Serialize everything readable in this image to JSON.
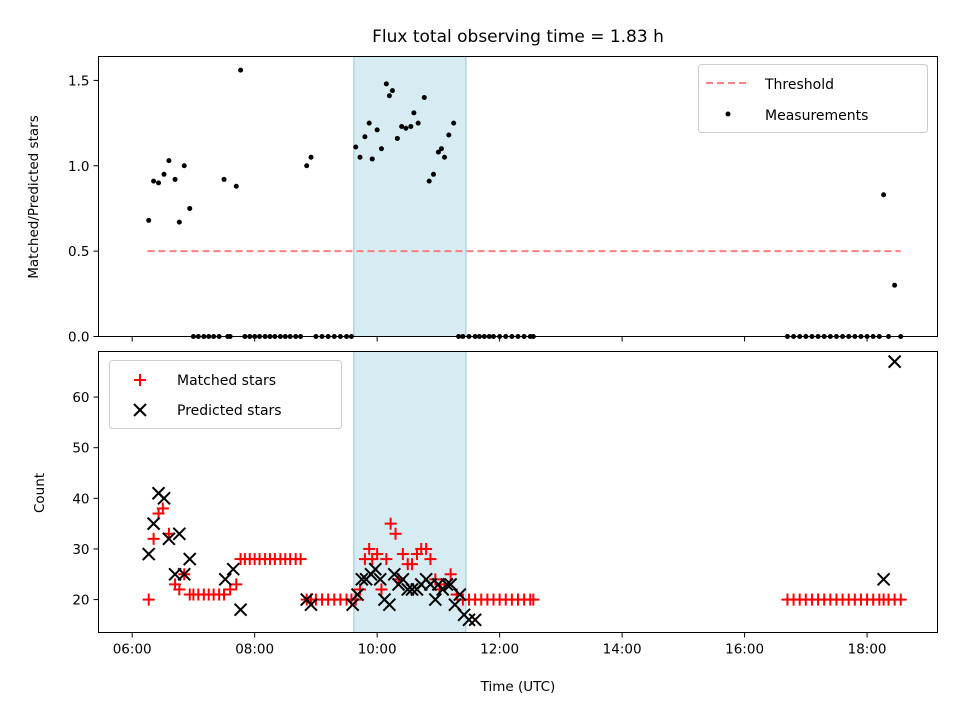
{
  "chart_data": [
    {
      "type": "scatter",
      "title": "Flux total observing time = 1.83 h",
      "xlabel": "",
      "ylabel": "Matched/Predicted stars",
      "xlim": [
        5.45,
        19.15
      ],
      "ylim": [
        0,
        1.64
      ],
      "yticks": [
        0.0,
        0.5,
        1.0,
        1.5
      ],
      "ytick_labels": [
        "0.0",
        "0.5",
        "1.0",
        "1.5"
      ],
      "xticks": [
        6,
        8,
        10,
        12,
        14,
        16,
        18
      ],
      "highlight_span": [
        9.62,
        11.45
      ],
      "legend": {
        "placement": "top-right",
        "entries": [
          "Threshold",
          "Measurements"
        ]
      },
      "threshold": {
        "name": "Threshold",
        "value": 0.5,
        "x_range": [
          6.25,
          18.55
        ],
        "color": "#ff8080"
      },
      "series": [
        {
          "name": "Measurements",
          "color": "#000000",
          "x": [
            6.27,
            6.35,
            6.43,
            6.52,
            6.6,
            6.7,
            6.77,
            6.85,
            6.94,
            7.0,
            7.08,
            7.17,
            7.25,
            7.33,
            7.42,
            7.5,
            7.56,
            7.6,
            7.7,
            7.77,
            7.84,
            7.92,
            8.0,
            8.08,
            8.17,
            8.25,
            8.33,
            8.42,
            8.5,
            8.58,
            8.67,
            8.75,
            8.85,
            8.92,
            9.0,
            9.1,
            9.2,
            9.3,
            9.4,
            9.5,
            9.58,
            9.65,
            9.72,
            9.8,
            9.87,
            9.92,
            10.0,
            10.07,
            10.15,
            10.2,
            10.25,
            10.33,
            10.4,
            10.47,
            10.55,
            10.6,
            10.67,
            10.77,
            10.85,
            10.92,
            11.0,
            11.05,
            11.1,
            11.17,
            11.25,
            11.33,
            11.4,
            11.5,
            11.6,
            11.67,
            11.75,
            11.83,
            11.9,
            12.0,
            12.1,
            12.2,
            12.3,
            12.4,
            12.5,
            12.55,
            16.7,
            16.8,
            16.9,
            17.0,
            17.1,
            17.2,
            17.3,
            17.4,
            17.5,
            17.6,
            17.7,
            17.8,
            17.9,
            18.0,
            18.1,
            18.2,
            18.27,
            18.35,
            18.45,
            18.55
          ],
          "y": [
            0.68,
            0.91,
            0.9,
            0.95,
            1.03,
            0.92,
            0.67,
            1.0,
            0.75,
            0.0,
            0.0,
            0.0,
            0.0,
            0.0,
            0.0,
            0.92,
            0.0,
            0.0,
            0.88,
            1.56,
            0.0,
            0.0,
            0.0,
            0.0,
            0.0,
            0.0,
            0.0,
            0.0,
            0.0,
            0.0,
            0.0,
            0.0,
            1.0,
            1.05,
            0.0,
            0.0,
            0.0,
            0.0,
            0.0,
            0.0,
            0.0,
            1.11,
            1.05,
            1.17,
            1.25,
            1.04,
            1.21,
            1.1,
            1.48,
            1.41,
            1.44,
            1.16,
            1.23,
            1.22,
            1.23,
            1.31,
            1.25,
            1.4,
            0.91,
            0.95,
            1.08,
            1.1,
            1.05,
            1.18,
            1.25,
            0.0,
            0.0,
            0.0,
            0.0,
            0.0,
            0.0,
            0.0,
            0.0,
            0.0,
            0.0,
            0.0,
            0.0,
            0.0,
            0.0,
            0.0,
            0.0,
            0.0,
            0.0,
            0.0,
            0.0,
            0.0,
            0.0,
            0.0,
            0.0,
            0.0,
            0.0,
            0.0,
            0.0,
            0.0,
            0.0,
            0.0,
            0.83,
            0.0,
            0.3,
            0.0
          ]
        }
      ]
    },
    {
      "type": "scatter",
      "title": "",
      "xlabel": "Time (UTC)",
      "ylabel": "Count",
      "xlim": [
        5.45,
        19.15
      ],
      "ylim": [
        13.5,
        69.0
      ],
      "yticks": [
        20,
        30,
        40,
        50,
        60
      ],
      "ytick_labels": [
        "20",
        "30",
        "40",
        "50",
        "60"
      ],
      "xticks": [
        6,
        8,
        10,
        12,
        14,
        16,
        18
      ],
      "xtick_labels": [
        "06:00",
        "08:00",
        "10:00",
        "12:00",
        "14:00",
        "16:00",
        "18:00"
      ],
      "highlight_span": [
        9.62,
        11.45
      ],
      "legend": {
        "placement": "top-left",
        "entries": [
          "Matched stars",
          "Predicted stars"
        ]
      },
      "series": [
        {
          "name": "Matched stars",
          "marker": "plus",
          "color": "#ff0000",
          "x": [
            6.27,
            6.35,
            6.43,
            6.5,
            6.6,
            6.7,
            6.77,
            6.85,
            6.94,
            7.0,
            7.08,
            7.17,
            7.25,
            7.33,
            7.42,
            7.5,
            7.6,
            7.7,
            7.77,
            7.84,
            7.92,
            8.0,
            8.08,
            8.17,
            8.25,
            8.33,
            8.42,
            8.5,
            8.58,
            8.67,
            8.75,
            8.85,
            8.92,
            9.0,
            9.1,
            9.2,
            9.3,
            9.4,
            9.5,
            9.58,
            9.65,
            9.72,
            9.8,
            9.87,
            9.92,
            10.0,
            10.07,
            10.15,
            10.22,
            10.3,
            10.35,
            10.42,
            10.5,
            10.57,
            10.65,
            10.72,
            10.8,
            10.87,
            10.95,
            11.02,
            11.1,
            11.2,
            11.3,
            11.4,
            11.5,
            11.6,
            11.7,
            11.8,
            11.9,
            12.0,
            12.1,
            12.2,
            12.3,
            12.4,
            12.5,
            12.55,
            16.7,
            16.8,
            16.9,
            17.0,
            17.1,
            17.2,
            17.3,
            17.4,
            17.5,
            17.6,
            17.7,
            17.8,
            17.9,
            18.0,
            18.1,
            18.2,
            18.27,
            18.35,
            18.45,
            18.55
          ],
          "y": [
            20,
            32,
            37,
            38,
            33,
            23,
            22,
            25,
            21,
            21,
            21,
            21,
            21,
            21,
            21,
            21,
            22,
            23,
            28,
            28,
            28,
            28,
            28,
            28,
            28,
            28,
            28,
            28,
            28,
            28,
            28,
            20,
            20,
            20,
            20,
            20,
            20,
            20,
            20,
            20,
            20,
            22,
            28,
            30,
            28,
            29,
            22,
            28,
            35,
            33,
            24,
            29,
            27,
            27,
            29,
            30,
            30,
            28,
            24,
            22,
            23,
            25,
            21,
            20,
            20,
            20,
            20,
            20,
            20,
            20,
            20,
            20,
            20,
            20,
            20,
            20,
            20,
            20,
            20,
            20,
            20,
            20,
            20,
            20,
            20,
            20,
            20,
            20,
            20,
            20,
            20,
            20,
            20,
            20,
            20,
            20
          ]
        },
        {
          "name": "Predicted stars",
          "marker": "x",
          "color": "#000000",
          "x": [
            6.27,
            6.35,
            6.43,
            6.52,
            6.6,
            6.7,
            6.77,
            6.85,
            6.94,
            7.52,
            7.65,
            7.77,
            8.85,
            8.92,
            9.6,
            9.68,
            9.75,
            9.82,
            9.9,
            9.97,
            10.05,
            10.12,
            10.2,
            10.28,
            10.35,
            10.42,
            10.5,
            10.57,
            10.65,
            10.72,
            10.8,
            10.87,
            10.95,
            11.0,
            11.07,
            11.14,
            11.2,
            11.27,
            11.35,
            11.42,
            11.5,
            11.6,
            18.27,
            18.45
          ],
          "y": [
            29,
            35,
            41,
            40,
            32,
            25,
            33,
            25,
            28,
            24,
            26,
            18,
            20,
            19,
            19,
            21,
            24,
            24,
            25,
            26,
            24,
            20,
            19,
            25,
            23,
            24,
            22,
            22,
            22,
            23,
            24,
            23,
            20,
            23,
            22,
            23,
            23,
            19,
            21,
            17,
            16,
            16,
            24,
            67
          ]
        }
      ]
    }
  ]
}
